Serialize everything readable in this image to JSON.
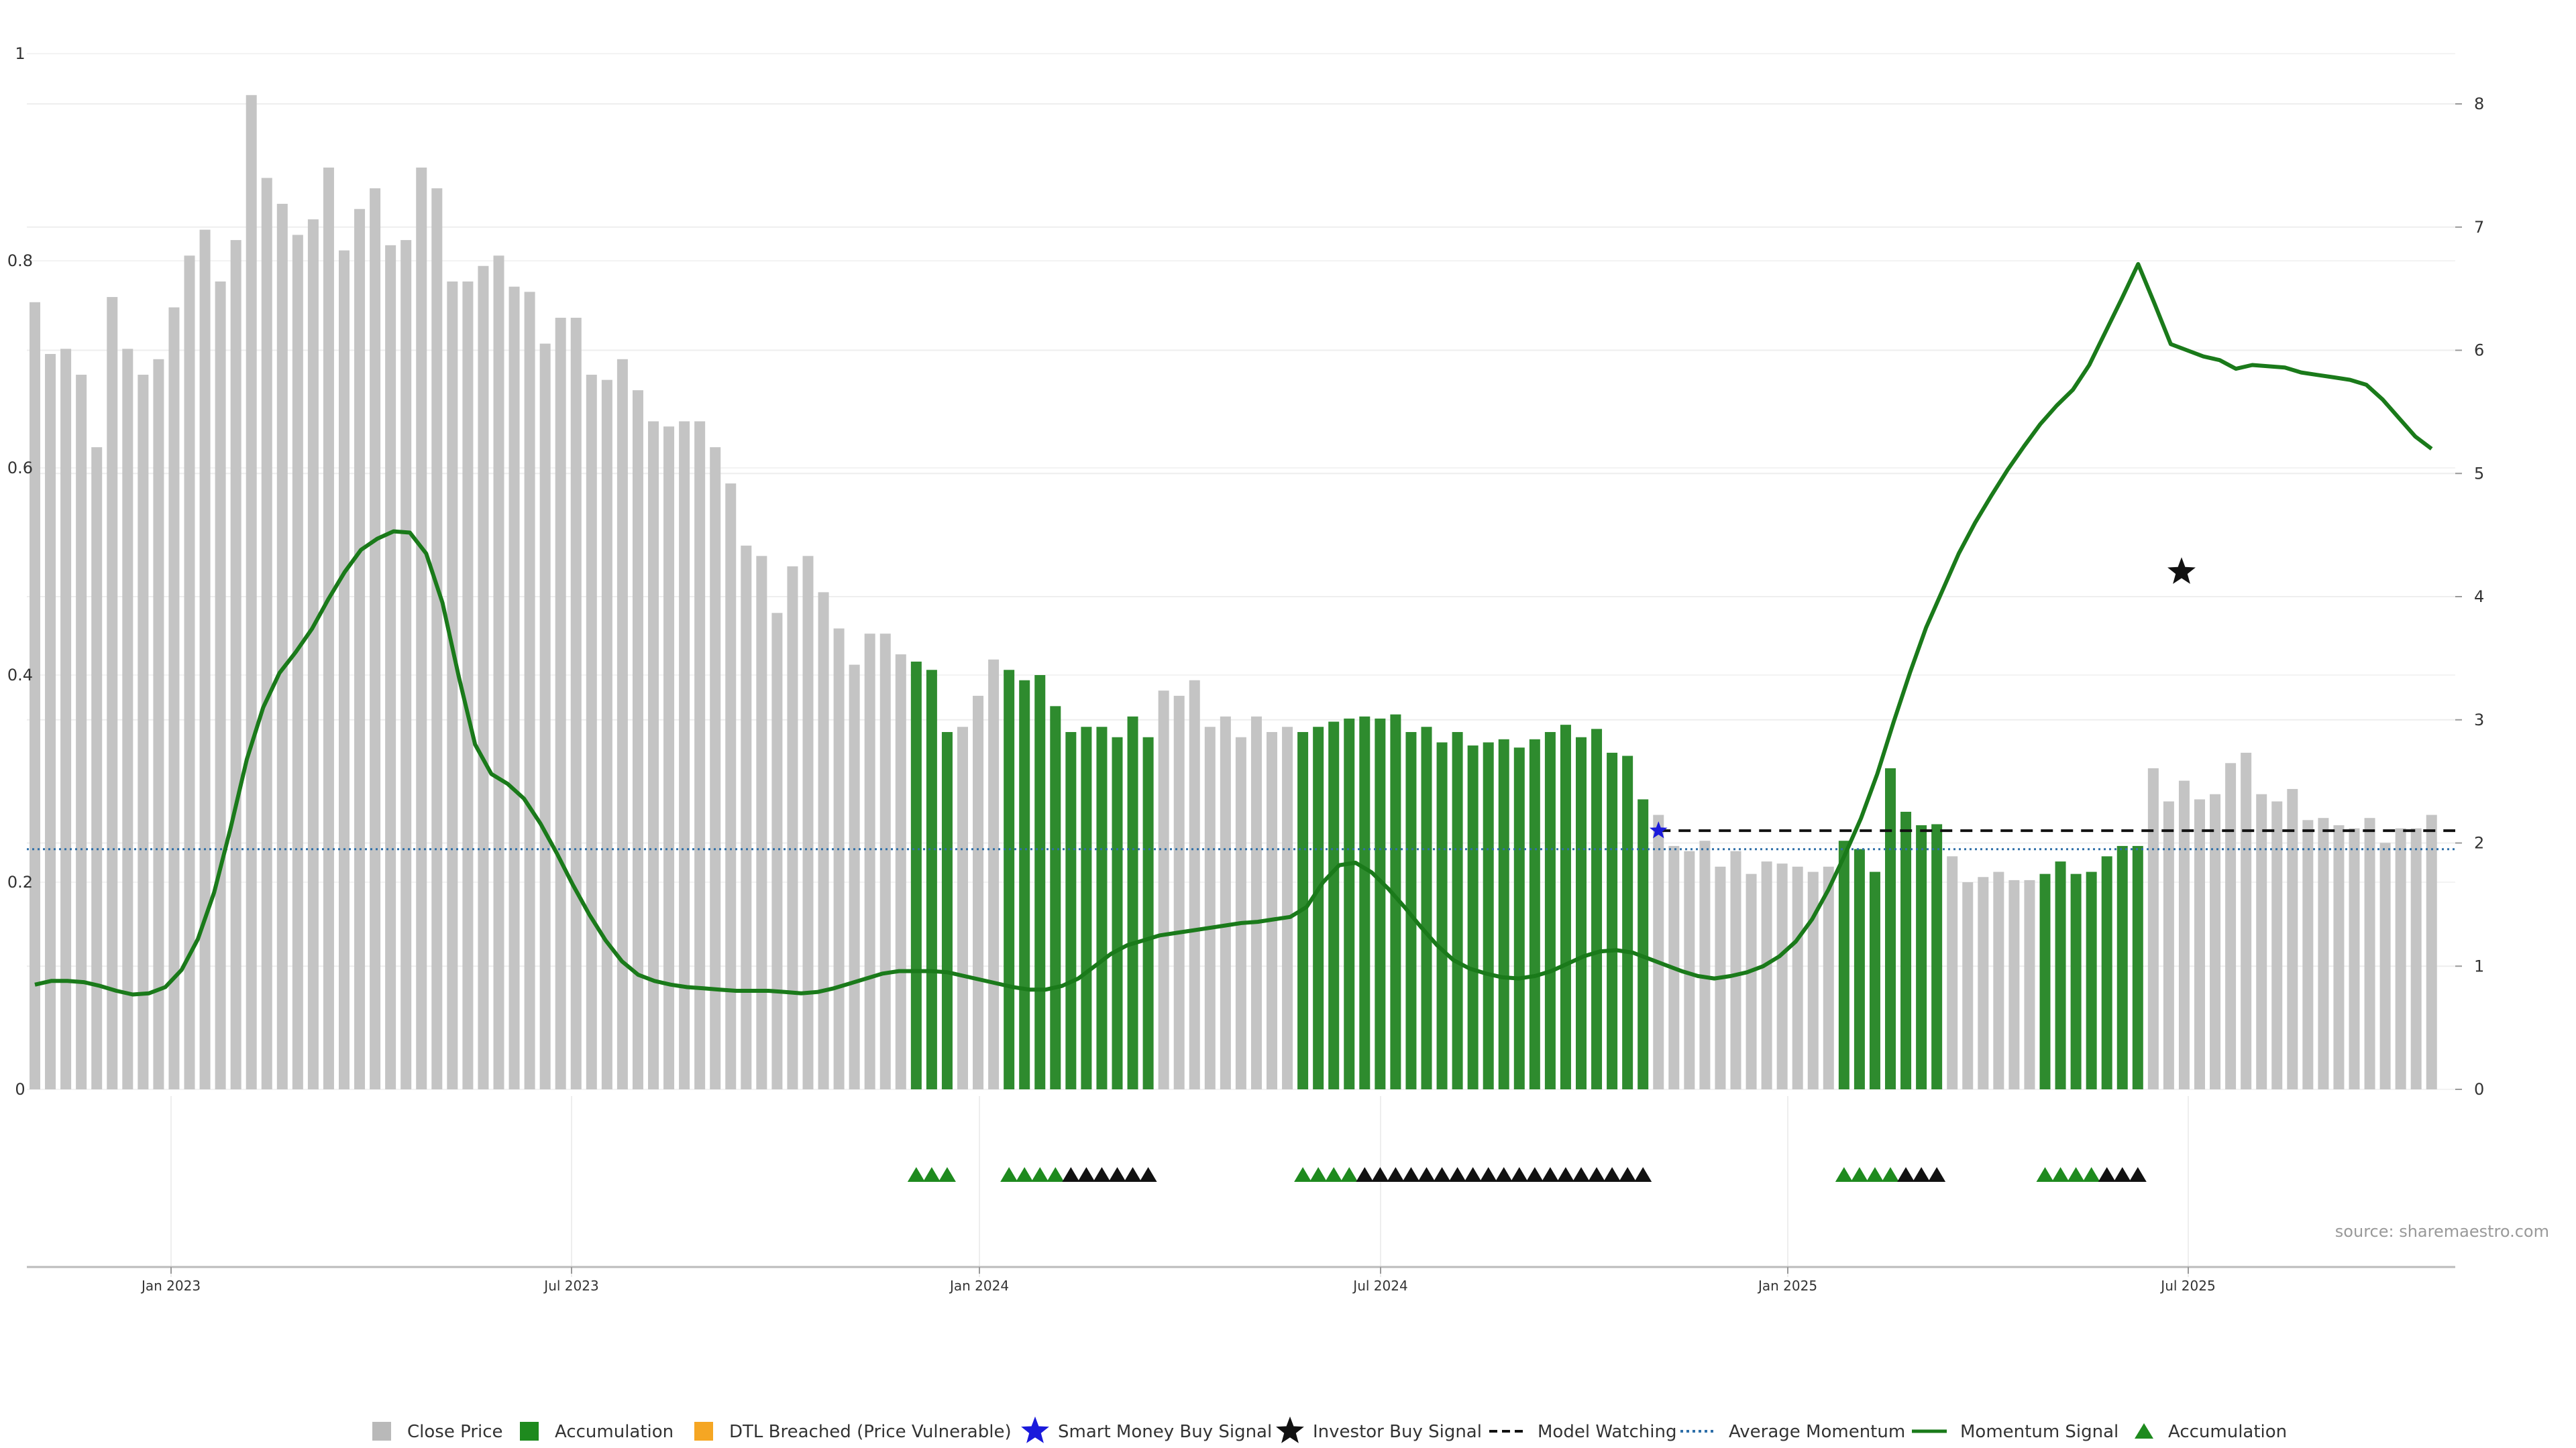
{
  "chart_data": {
    "type": "bar",
    "source_text": "source: sharemaestro.com",
    "x_tick_labels": [
      "Jan 2023",
      "Jul 2023",
      "Jan 2024",
      "Jul 2024",
      "Jan 2025",
      "Jul 2025"
    ],
    "y_left": {
      "ylim": [
        0,
        1
      ],
      "ticks": [
        0,
        0.2,
        0.4,
        0.6,
        0.8,
        1
      ],
      "tick_labels": [
        "0",
        "0.2",
        "0.4",
        "0.6",
        "0.8",
        "1"
      ]
    },
    "y_right": {
      "ylim": [
        0,
        8
      ],
      "ticks": [
        0,
        1,
        2,
        3,
        4,
        5,
        6,
        7,
        8
      ],
      "tick_labels": [
        "0",
        "1",
        "2",
        "3",
        "4",
        "5",
        "6",
        "7",
        "8"
      ]
    },
    "grid": true,
    "legend_placement": "bottom-center",
    "legend": [
      {
        "label": "Close Price",
        "symbol": "square",
        "color": "#b9b9b9"
      },
      {
        "label": "Accumulation",
        "symbol": "square",
        "color": "#1e8a1e"
      },
      {
        "label": "DTL Breached (Price Vulnerable)",
        "symbol": "square",
        "color": "#f5a623"
      },
      {
        "label": "Smart Money Buy Signal",
        "symbol": "star",
        "color": "#1a1adb"
      },
      {
        "label": "Investor Buy Signal",
        "symbol": "star",
        "color": "#111111"
      },
      {
        "label": "Model Watching",
        "symbol": "dashed-line",
        "color": "#111111"
      },
      {
        "label": "Average Momentum",
        "symbol": "dotted-line",
        "color": "#2e6fa8"
      },
      {
        "label": "Momentum Signal",
        "symbol": "line",
        "color": "#1a7a1a"
      },
      {
        "label": "Accumulation",
        "symbol": "triangle",
        "color": "#1e8a1e"
      }
    ],
    "close_price": [
      0.76,
      0.71,
      0.715,
      0.69,
      0.62,
      0.765,
      0.715,
      0.69,
      0.705,
      0.755,
      0.805,
      0.83,
      0.78,
      0.82,
      0.96,
      0.88,
      0.855,
      0.825,
      0.84,
      0.89,
      0.81,
      0.85,
      0.87,
      0.815,
      0.82,
      0.89,
      0.87,
      0.78,
      0.78,
      0.795,
      0.805,
      0.775,
      0.77,
      0.72,
      0.745,
      0.745,
      0.69,
      0.685,
      0.705,
      0.675,
      0.645,
      0.64,
      0.645,
      0.645,
      0.62,
      0.585,
      0.525,
      0.515,
      0.46,
      0.505,
      0.515,
      0.48,
      0.445,
      0.41,
      0.44,
      0.44,
      0.42,
      0.413,
      0.405,
      0.345,
      0.35,
      0.38,
      0.415,
      0.405,
      0.395,
      0.4,
      0.37,
      0.345,
      0.35,
      0.35,
      0.34,
      0.36,
      0.34,
      0.385,
      0.38,
      0.395,
      0.35,
      0.36,
      0.34,
      0.36,
      0.345,
      0.35,
      0.345,
      0.35,
      0.355,
      0.358,
      0.36,
      0.358,
      0.362,
      0.345,
      0.35,
      0.335,
      0.345,
      0.332,
      0.335,
      0.338,
      0.33,
      0.338,
      0.345,
      0.352,
      0.34,
      0.348,
      0.325,
      0.322,
      0.28,
      0.265,
      0.235,
      0.23,
      0.24,
      0.215,
      0.23,
      0.208,
      0.22,
      0.218,
      0.215,
      0.21,
      0.215,
      0.24,
      0.232,
      0.21,
      0.31,
      0.268,
      0.255,
      0.256,
      0.225,
      0.2,
      0.205,
      0.21,
      0.202,
      0.202,
      0.208,
      0.22,
      0.208,
      0.21,
      0.225,
      0.235,
      0.235,
      0.31,
      0.278,
      0.298,
      0.28,
      0.285,
      0.315,
      0.325,
      0.285,
      0.278,
      0.29,
      0.26,
      0.262,
      0.255,
      0.252,
      0.262,
      0.238,
      0.252,
      0.252,
      0.265
    ],
    "accumulation_bar_indices": [
      57,
      58,
      59,
      63,
      64,
      65,
      66,
      67,
      68,
      69,
      70,
      71,
      72,
      82,
      83,
      84,
      85,
      86,
      87,
      88,
      89,
      90,
      91,
      92,
      93,
      94,
      95,
      96,
      97,
      98,
      99,
      100,
      101,
      102,
      103,
      104,
      117,
      118,
      119,
      120,
      121,
      122,
      123,
      130,
      131,
      132,
      133,
      134,
      135,
      136
    ],
    "momentum_signal": [
      [
        0.85,
        0.88,
        0.88,
        0.87,
        0.84,
        0.8,
        0.77,
        0.78,
        0.83,
        0.97,
        1.22,
        1.6,
        2.12,
        2.68,
        3.1,
        3.38,
        3.55,
        3.74,
        3.98,
        4.2,
        4.38,
        4.47,
        4.53,
        4.52,
        4.35,
        3.95,
        3.35,
        2.8,
        2.56,
        2.48,
        2.36,
        2.16,
        1.92,
        1.66,
        1.42,
        1.21,
        1.04,
        0.93,
        0.88,
        0.85,
        0.83,
        0.82,
        0.81,
        0.8,
        0.8,
        0.8,
        0.79,
        0.78,
        0.79,
        0.82,
        0.86,
        0.9,
        0.94,
        0.96,
        0.96,
        0.96,
        0.95,
        0.92,
        0.89,
        0.86,
        0.83,
        0.81,
        0.81,
        0.84,
        0.9,
        1.0,
        1.1,
        1.17,
        1.21,
        1.25,
        1.27,
        1.29,
        1.31,
        1.33,
        1.35,
        1.36,
        1.38,
        1.4,
        1.48,
        1.68,
        1.82,
        1.84,
        1.76,
        1.63,
        1.48,
        1.32,
        1.17,
        1.05,
        0.98,
        0.94,
        0.91,
        0.9,
        0.92,
        0.96,
        1.02,
        1.08,
        1.12,
        1.13,
        1.11,
        1.06,
        1.01,
        0.96,
        0.92,
        0.9,
        0.92,
        0.95,
        1.0,
        1.08,
        1.2,
        1.38,
        1.62,
        1.9,
        2.2,
        2.56,
        2.98,
        3.38,
        3.75,
        4.05,
        4.35,
        4.6,
        4.82,
        5.03,
        5.22,
        5.4,
        5.55,
        5.68,
        5.88,
        6.15,
        6.42,
        6.7,
        6.38,
        6.05,
        6.0,
        5.95,
        5.92,
        5.85,
        5.88,
        5.87,
        5.86,
        5.82,
        5.8,
        5.78,
        5.76,
        5.72,
        5.6,
        5.45,
        5.3,
        5.2
      ]
    ],
    "average_momentum": 1.95,
    "model_watching_level": 2.1,
    "investor_buy_signal": {
      "x_index": 142,
      "y": 4.2
    },
    "accumulation_triangles": [
      57,
      58,
      59,
      63,
      64,
      65,
      66,
      67,
      68,
      69,
      70,
      71,
      72,
      82,
      83,
      84,
      85,
      86,
      87,
      88,
      89,
      90,
      91,
      92,
      93,
      94,
      95,
      96,
      97,
      98,
      99,
      100,
      101,
      102,
      103,
      104,
      117,
      118,
      119,
      120,
      121,
      122,
      123,
      130,
      131,
      132,
      133,
      134,
      135,
      136
    ],
    "accumulation_triangle_colors": [
      "green",
      "green",
      "green",
      "green",
      "green",
      "green",
      "green",
      "black",
      "black",
      "black",
      "black",
      "black",
      "black",
      "green",
      "green",
      "green",
      "green",
      "black",
      "black",
      "black",
      "black",
      "black",
      "black",
      "black",
      "black",
      "black",
      "black",
      "black",
      "black",
      "black",
      "black",
      "black",
      "black",
      "black",
      "black",
      "black",
      "green",
      "green",
      "green",
      "green",
      "black",
      "black",
      "black",
      "green",
      "green",
      "green",
      "green",
      "black",
      "black",
      "black"
    ]
  }
}
